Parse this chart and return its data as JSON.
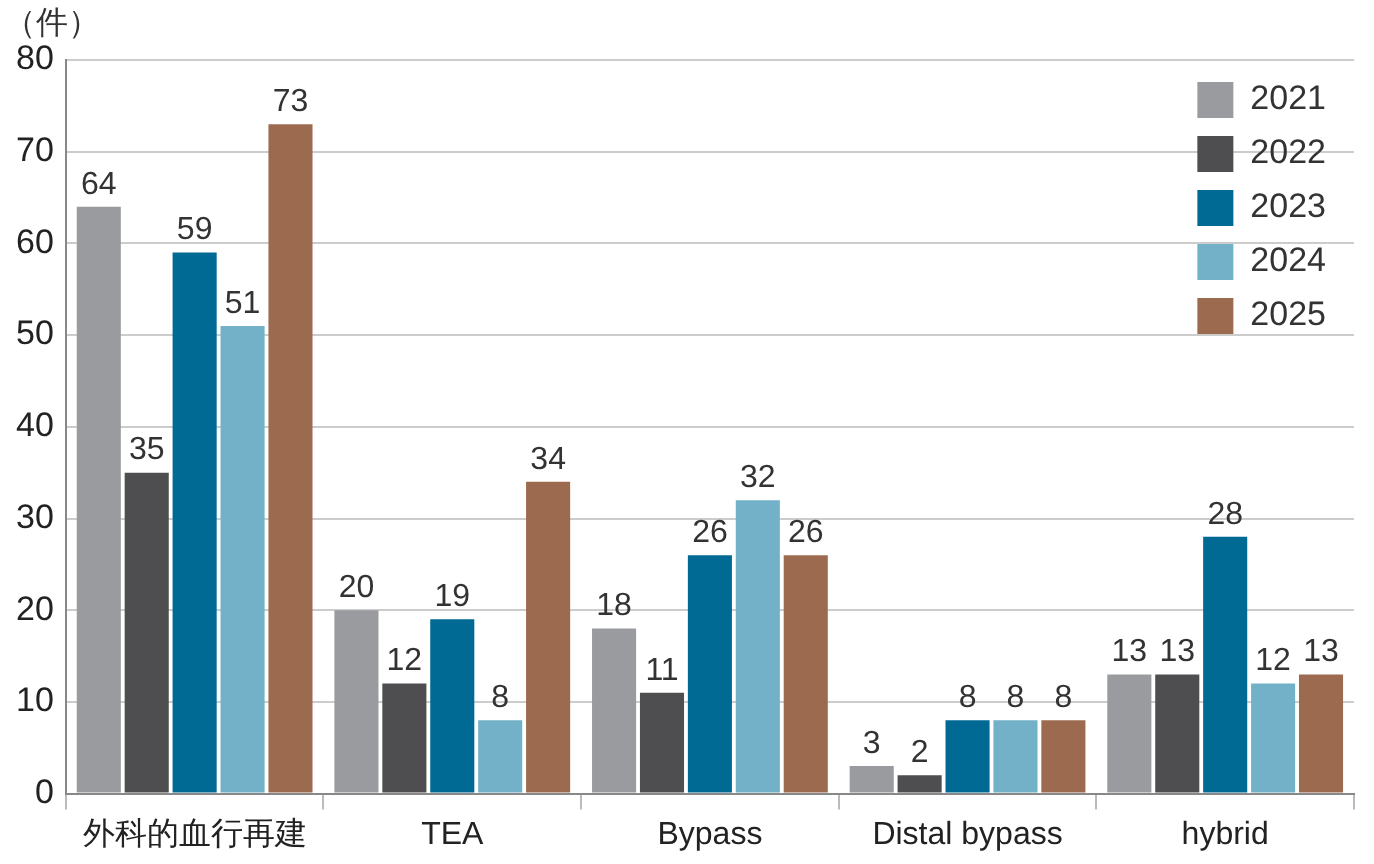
{
  "chart_data": {
    "type": "bar",
    "ylabel": "（件）",
    "categories": [
      "外科的血行再建",
      "TEA",
      "Bypass",
      "Distal bypass",
      "hybrid"
    ],
    "series": [
      {
        "name": "2021",
        "color": "#9a9b9f",
        "values": [
          64,
          20,
          18,
          3,
          13
        ]
      },
      {
        "name": "2022",
        "color": "#4e4e50",
        "values": [
          35,
          12,
          11,
          2,
          13
        ]
      },
      {
        "name": "2023",
        "color": "#006a94",
        "values": [
          59,
          19,
          26,
          8,
          28
        ]
      },
      {
        "name": "2024",
        "color": "#72b1c8",
        "values": [
          51,
          8,
          32,
          8,
          12
        ]
      },
      {
        "name": "2025",
        "color": "#9c6b4f",
        "values": [
          73,
          34,
          26,
          8,
          13
        ]
      }
    ],
    "ylim": [
      0,
      80
    ],
    "yticks": [
      0,
      10,
      20,
      30,
      40,
      50,
      60,
      70,
      80
    ],
    "grid": "y",
    "legend": "top right",
    "data_labels": true
  }
}
